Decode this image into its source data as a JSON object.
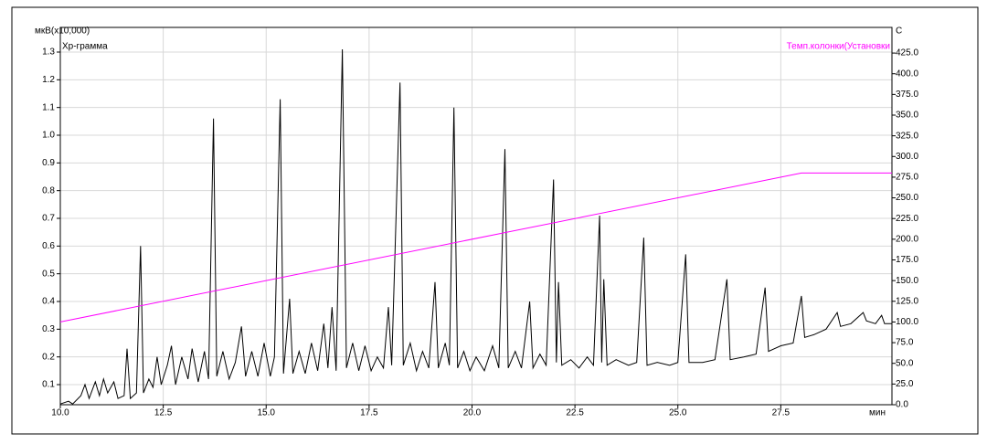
{
  "chart_data": {
    "type": "line",
    "y_unit_label": "мкВ(x10,000)",
    "y2_unit_label": "С",
    "x_label": "мин",
    "xlim": [
      10,
      30.2
    ],
    "ylim": [
      0.0275,
      1.389
    ],
    "y2lim": [
      0,
      456
    ],
    "xticks": [
      {
        "value": 10,
        "label": "10.0"
      },
      12.5,
      {
        "value": 15,
        "label": "15.0"
      },
      17.5,
      {
        "value": 20,
        "label": "20.0"
      },
      22.5,
      {
        "value": 25,
        "label": "25.0"
      },
      27.5
    ],
    "yticks": [
      0.1,
      0.2,
      0.3,
      0.4,
      0.5,
      0.6,
      0.7,
      0.8,
      0.9,
      {
        "value": 1,
        "label": "1.0"
      },
      1.1,
      1.2,
      1.3
    ],
    "y2ticks": [
      {
        "value": 0,
        "label": "0.0"
      },
      {
        "value": 25,
        "label": "25.0"
      },
      {
        "value": 50,
        "label": "50.0"
      },
      {
        "value": 75,
        "label": "75.0"
      },
      {
        "value": 100,
        "label": "100.0"
      },
      {
        "value": 125,
        "label": "125.0"
      },
      {
        "value": 150,
        "label": "150.0"
      },
      {
        "value": 175,
        "label": "175.0"
      },
      {
        "value": 200,
        "label": "200.0"
      },
      {
        "value": 225,
        "label": "225.0"
      },
      {
        "value": 250,
        "label": "250.0"
      },
      {
        "value": 275,
        "label": "275.0"
      },
      {
        "value": 300,
        "label": "300.0"
      },
      {
        "value": 325,
        "label": "325.0"
      },
      {
        "value": 350,
        "label": "350.0"
      },
      {
        "value": 375,
        "label": "375.0"
      },
      {
        "value": 400,
        "label": "400.0"
      },
      {
        "value": 425,
        "label": "425.0"
      }
    ],
    "grid": true,
    "series": [
      {
        "name": "Хр-грамма",
        "color": "#000000",
        "x": [
          10.0,
          10.2,
          10.3,
          10.5,
          10.6,
          10.7,
          10.85,
          10.95,
          11.05,
          11.15,
          11.3,
          11.4,
          11.55,
          11.62,
          11.7,
          11.85,
          11.95,
          12.02,
          12.15,
          12.25,
          12.35,
          12.45,
          12.6,
          12.7,
          12.8,
          12.95,
          13.1,
          13.2,
          13.35,
          13.5,
          13.6,
          13.72,
          13.8,
          13.95,
          14.1,
          14.25,
          14.4,
          14.5,
          14.65,
          14.8,
          14.95,
          15.1,
          15.2,
          15.34,
          15.42,
          15.57,
          15.65,
          15.8,
          15.95,
          16.1,
          16.25,
          16.4,
          16.5,
          16.6,
          16.7,
          16.85,
          16.95,
          17.1,
          17.25,
          17.4,
          17.55,
          17.7,
          17.85,
          17.97,
          18.05,
          18.25,
          18.33,
          18.5,
          18.65,
          18.8,
          18.95,
          19.1,
          19.18,
          19.35,
          19.45,
          19.56,
          19.65,
          19.8,
          19.95,
          20.1,
          20.3,
          20.5,
          20.65,
          20.8,
          20.88,
          21.05,
          21.2,
          21.4,
          21.48,
          21.65,
          21.8,
          21.98,
          22.05,
          22.1,
          22.18,
          22.4,
          22.6,
          22.8,
          22.95,
          23.1,
          23.15,
          23.2,
          23.28,
          23.5,
          23.8,
          24.0,
          24.17,
          24.25,
          24.5,
          24.8,
          25.0,
          25.19,
          25.27,
          25.6,
          25.9,
          26.19,
          26.27,
          26.6,
          26.9,
          27.12,
          27.2,
          27.5,
          27.8,
          28.0,
          28.08,
          28.3,
          28.6,
          28.87,
          28.95,
          29.2,
          29.5,
          29.58,
          29.8,
          29.95,
          30.02,
          30.2
        ],
        "values": [
          0.03,
          0.04,
          0.03,
          0.06,
          0.1,
          0.05,
          0.11,
          0.06,
          0.12,
          0.07,
          0.11,
          0.05,
          0.06,
          0.23,
          0.05,
          0.07,
          0.6,
          0.07,
          0.12,
          0.09,
          0.2,
          0.1,
          0.17,
          0.24,
          0.1,
          0.2,
          0.12,
          0.23,
          0.11,
          0.22,
          0.12,
          1.06,
          0.13,
          0.22,
          0.12,
          0.18,
          0.31,
          0.13,
          0.22,
          0.13,
          0.25,
          0.13,
          0.2,
          1.13,
          0.14,
          0.41,
          0.14,
          0.22,
          0.14,
          0.25,
          0.15,
          0.32,
          0.16,
          0.38,
          0.15,
          1.31,
          0.16,
          0.25,
          0.15,
          0.24,
          0.15,
          0.2,
          0.16,
          0.38,
          0.17,
          1.19,
          0.17,
          0.25,
          0.15,
          0.22,
          0.16,
          0.47,
          0.16,
          0.25,
          0.17,
          1.1,
          0.16,
          0.22,
          0.15,
          0.2,
          0.15,
          0.24,
          0.16,
          0.95,
          0.16,
          0.22,
          0.16,
          0.4,
          0.16,
          0.21,
          0.17,
          0.84,
          0.18,
          0.47,
          0.17,
          0.19,
          0.16,
          0.2,
          0.17,
          0.71,
          0.18,
          0.48,
          0.17,
          0.19,
          0.17,
          0.18,
          0.63,
          0.17,
          0.18,
          0.17,
          0.18,
          0.57,
          0.18,
          0.18,
          0.19,
          0.48,
          0.19,
          0.2,
          0.21,
          0.45,
          0.22,
          0.24,
          0.25,
          0.42,
          0.27,
          0.28,
          0.3,
          0.36,
          0.31,
          0.32,
          0.36,
          0.33,
          0.32,
          0.35,
          0.32,
          0.32
        ]
      },
      {
        "name": "Темп.колонки(Установки",
        "color": "#ff00ff",
        "axis": "y2",
        "x": [
          10,
          28,
          30.2
        ],
        "values": [
          100,
          280,
          280
        ]
      }
    ]
  }
}
